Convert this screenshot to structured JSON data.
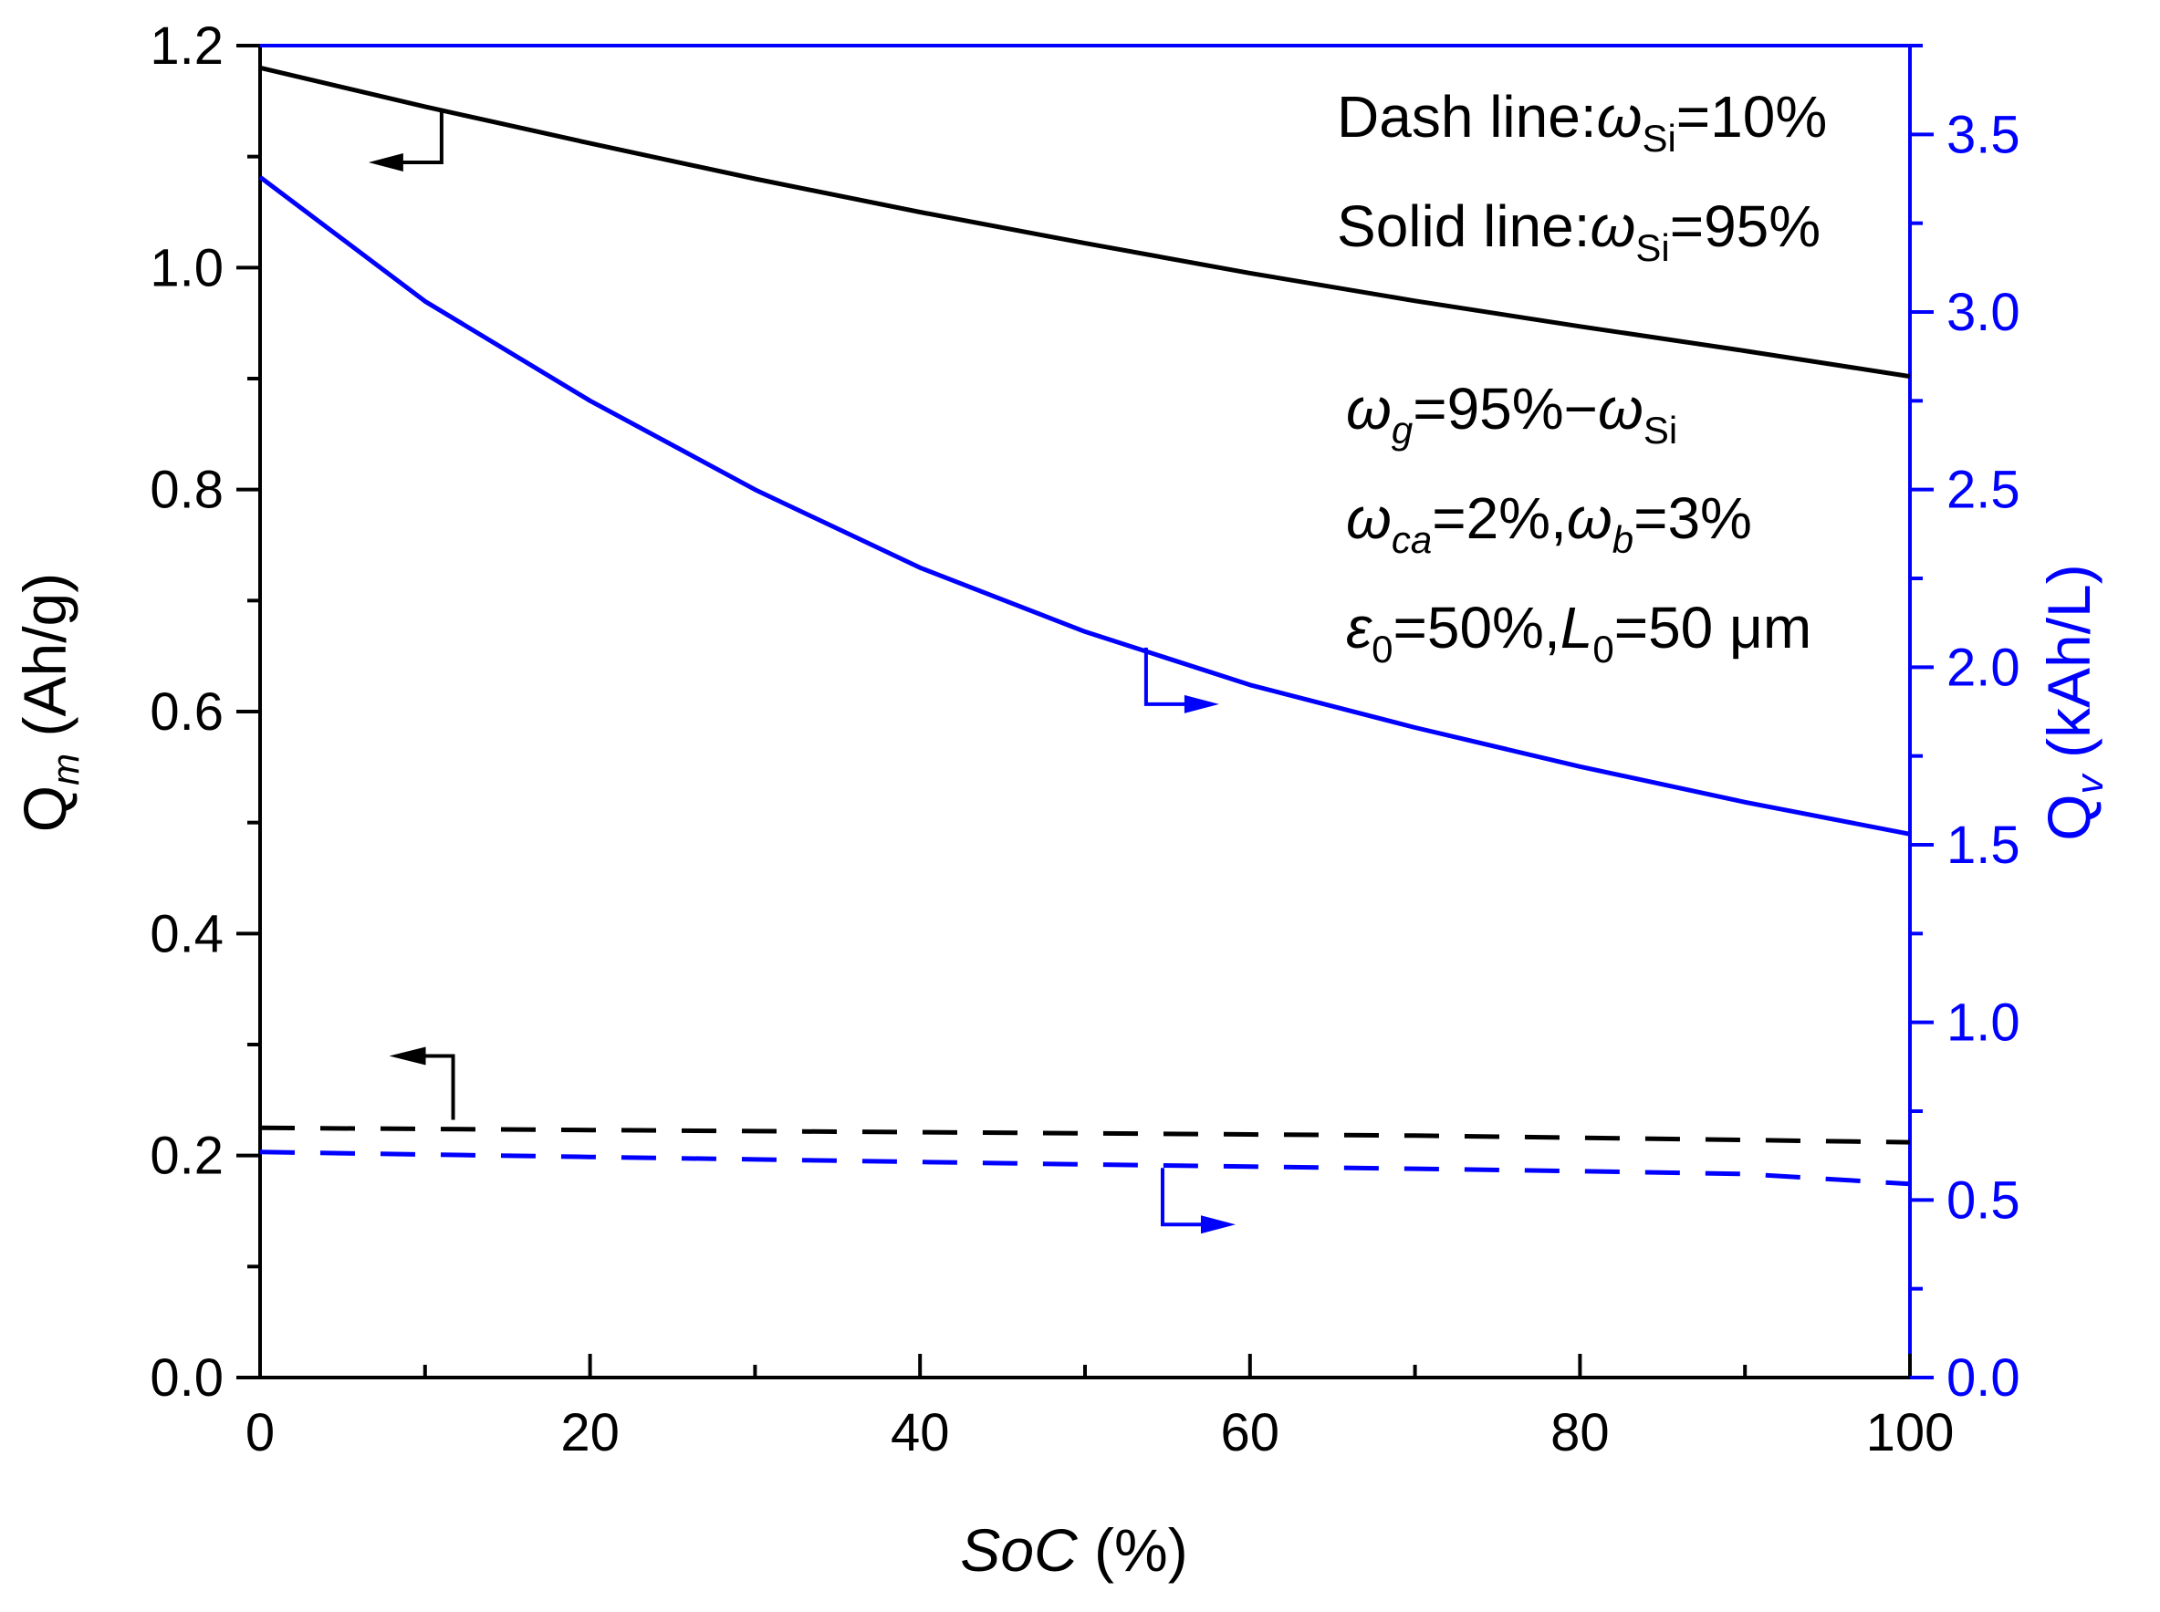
{
  "chart_data": {
    "type": "line",
    "xlabel": "SoC (%)",
    "xlabel_var": "SoC",
    "xlabel_unit": "(%)",
    "ylabel_left": "Q_m (Ah/g)",
    "ylabel_left_sym": "Q",
    "ylabel_left_sub": "m",
    "ylabel_left_unit": "(Ah/g)",
    "ylabel_right": "Q_v (kAh/L)",
    "ylabel_right_sym": "Q",
    "ylabel_right_sub": "v",
    "ylabel_right_unit": "(kAh/L)",
    "xlim": [
      0,
      100
    ],
    "ylim_left": [
      0,
      1.2
    ],
    "ylim_right": [
      0,
      3.75
    ],
    "x_ticks": [
      "0",
      "20",
      "40",
      "60",
      "80",
      "100"
    ],
    "y_left_ticks": [
      "0.0",
      "0.2",
      "0.4",
      "0.6",
      "0.8",
      "1.0",
      "1.2"
    ],
    "y_right_ticks": [
      "0.0",
      "0.5",
      "1.0",
      "1.5",
      "2.0",
      "2.5",
      "3.0",
      "3.5"
    ],
    "grid": false,
    "x": [
      0,
      10,
      20,
      30,
      40,
      50,
      60,
      70,
      80,
      90,
      100
    ],
    "series": [
      {
        "name": "Q_m, ω_Si=95% (solid)",
        "axis": "left",
        "style": "solid",
        "color": "#000000",
        "values": [
          1.18,
          1.145,
          1.112,
          1.08,
          1.05,
          1.022,
          0.995,
          0.97,
          0.947,
          0.925,
          0.902
        ]
      },
      {
        "name": "Q_v, ω_Si=95% (solid)",
        "axis": "right",
        "style": "solid",
        "color": "#0000ff",
        "values": [
          3.38,
          3.03,
          2.75,
          2.5,
          2.28,
          2.1,
          1.95,
          1.83,
          1.72,
          1.62,
          1.53
        ]
      },
      {
        "name": "Q_m, ω_Si=10% (dash)",
        "axis": "left",
        "style": "dash",
        "color": "#000000",
        "values": [
          0.225,
          0.224,
          0.223,
          0.222,
          0.221,
          0.22,
          0.219,
          0.218,
          0.216,
          0.214,
          0.212
        ]
      },
      {
        "name": "Q_v, ω_Si=10% (dash)",
        "axis": "right",
        "style": "dash",
        "color": "#0000ff",
        "values": [
          0.635,
          0.628,
          0.621,
          0.614,
          0.607,
          0.6,
          0.594,
          0.588,
          0.581,
          0.573,
          0.545
        ]
      }
    ],
    "annotations": {
      "line1_pre": "Dash line:",
      "line1_sym": "ω",
      "line1_sub": "Si",
      "line1_post": "=10%",
      "line2_pre": "Solid line:",
      "line2_sym": "ω",
      "line2_sub": "Si",
      "line2_post": "=95%",
      "line3_sym": "ω",
      "line3_sub": "g",
      "line3_mid": "=95%−",
      "line3_sym2": "ω",
      "line3_sub2": "Si",
      "line4_sym": "ω",
      "line4_sub": "ca",
      "line4_mid": "=2%,",
      "line4_sym2": "ω",
      "line4_sub2": "b",
      "line4_post": "=3%",
      "line5_sym": "ε",
      "line5_sub": "0",
      "line5_mid": "=50%,",
      "line5_sym2": "L",
      "line5_sub2": "0",
      "line5_post": "=50 μm"
    },
    "colors": {
      "left_axis": "#000000",
      "right_axis": "#0000ff"
    }
  }
}
